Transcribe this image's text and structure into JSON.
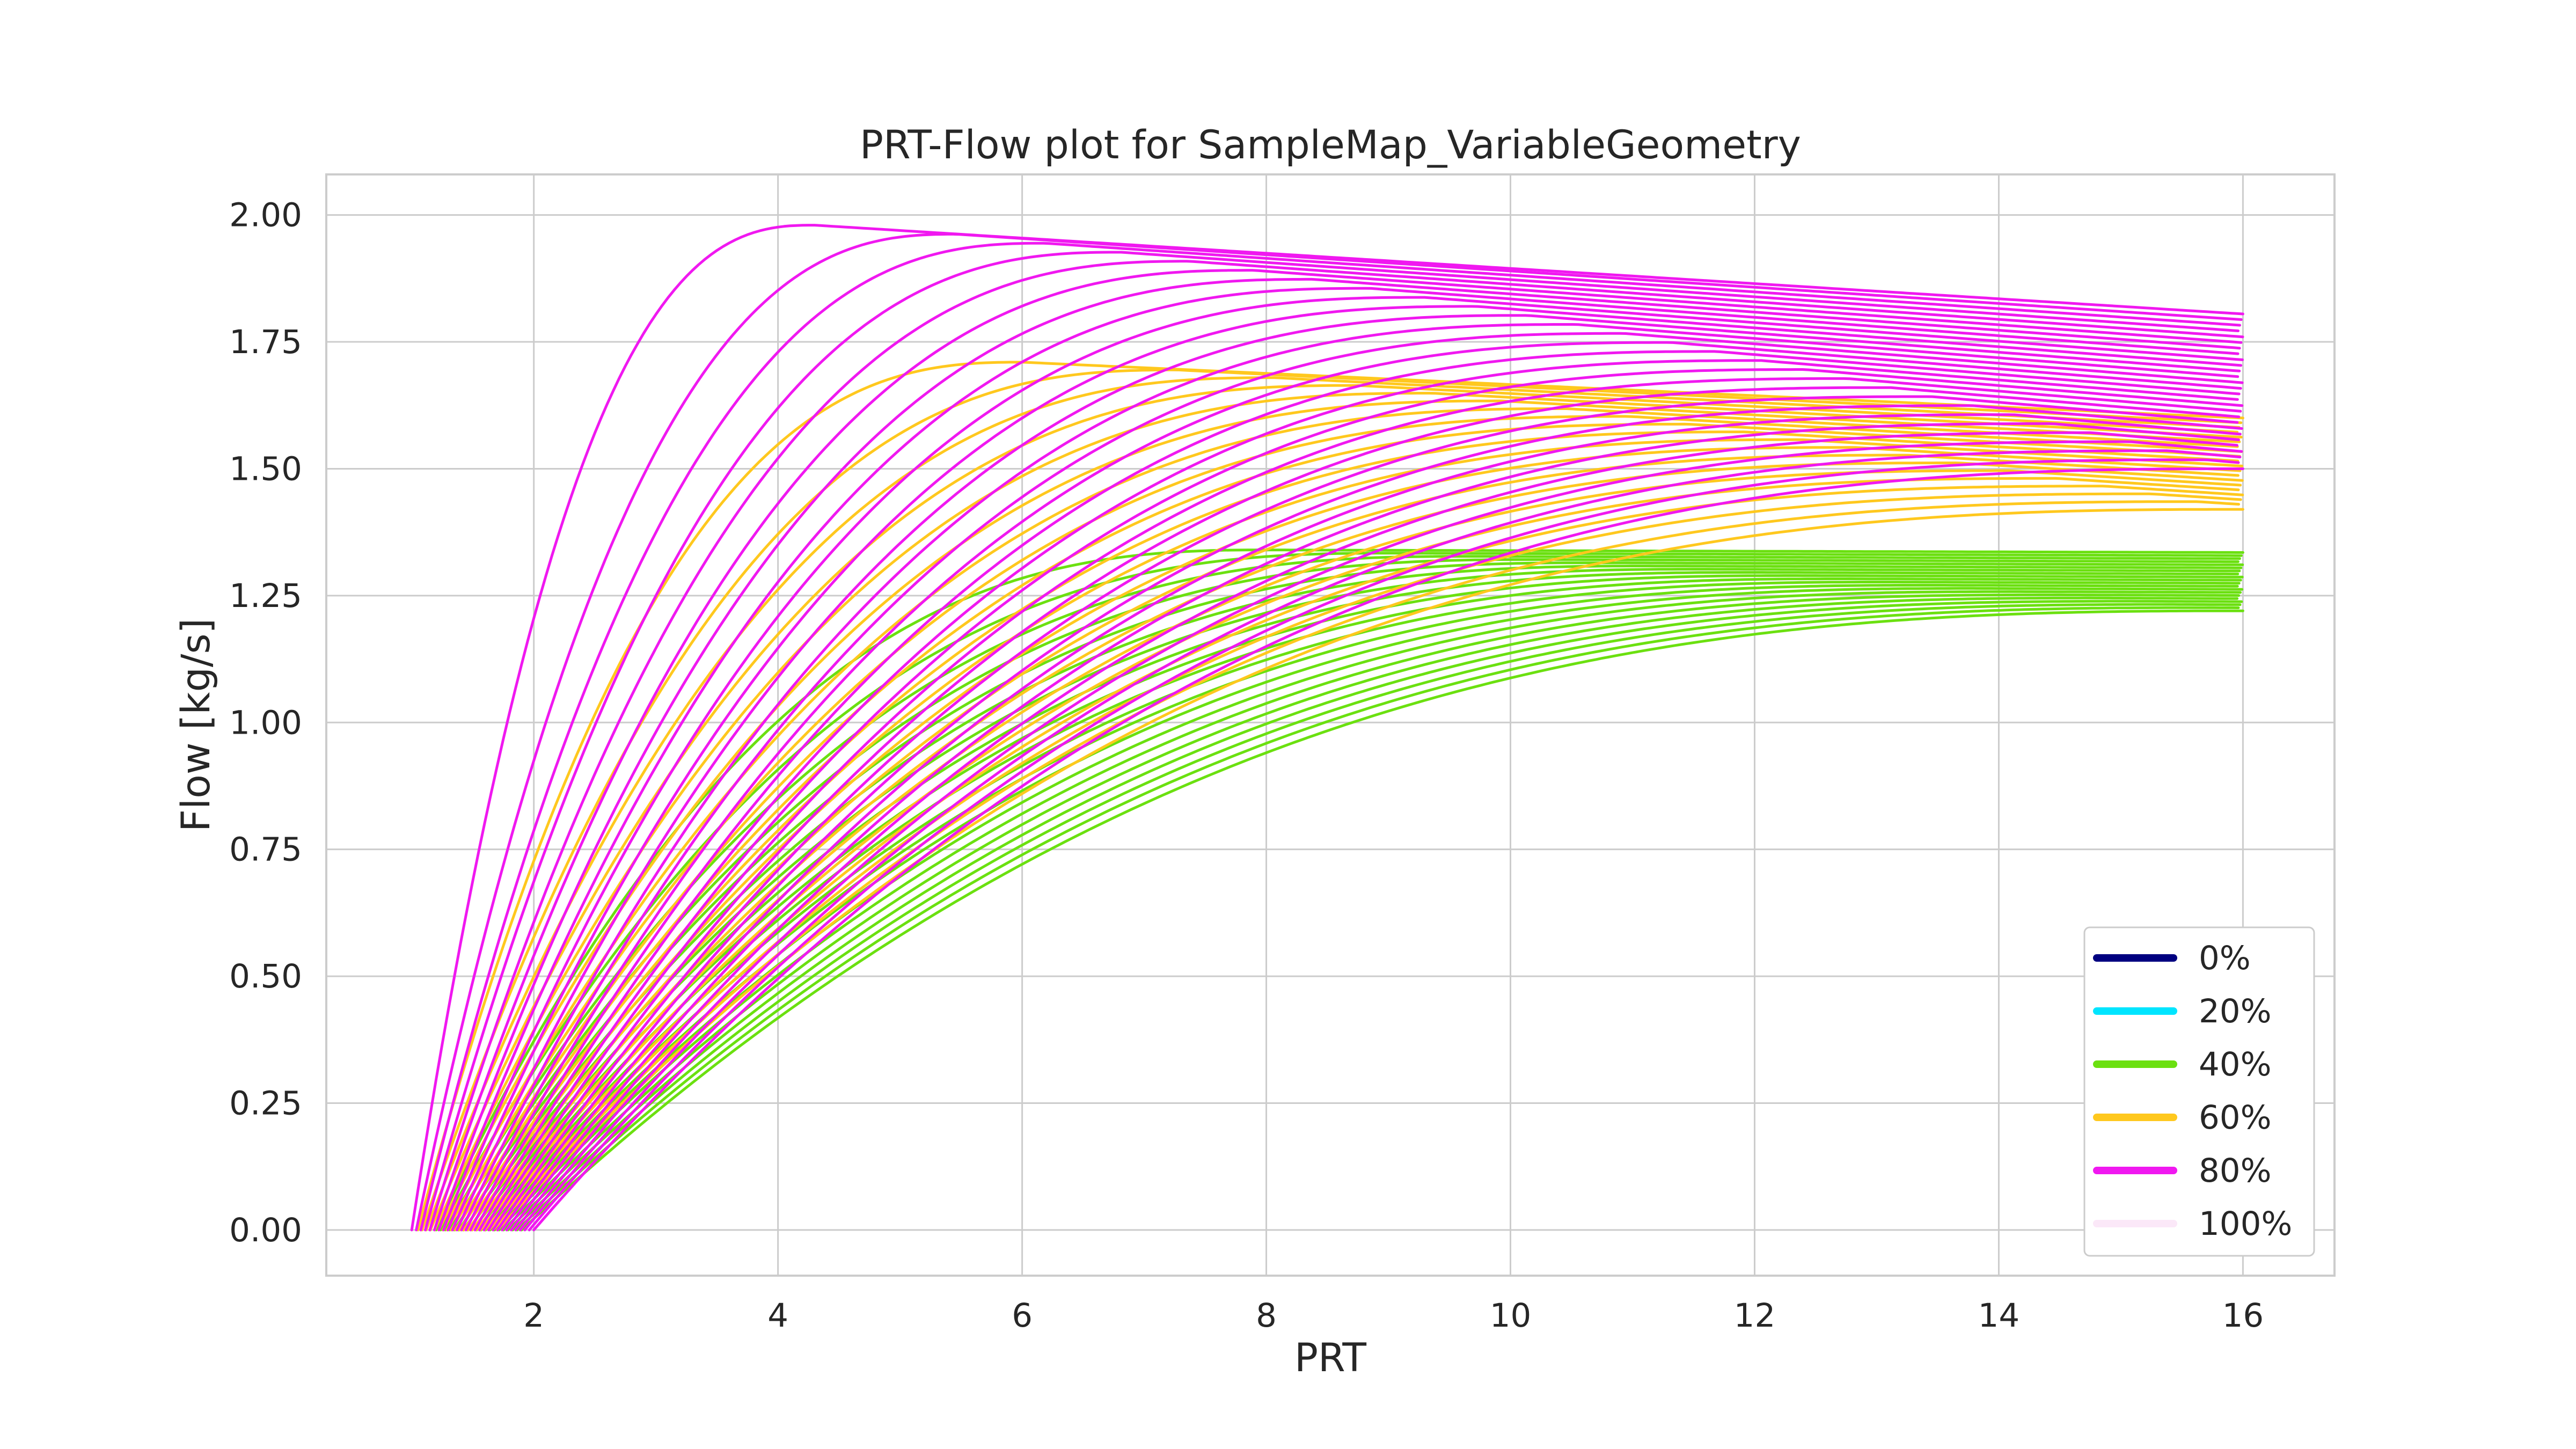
{
  "chart_data": {
    "type": "line",
    "title": "PRT-Flow plot for SampleMap_VariableGeometry",
    "xlabel": "PRT",
    "ylabel": "Flow [kg/s]",
    "xlim": [
      0.3,
      16.75
    ],
    "ylim": [
      -0.09,
      2.08
    ],
    "xticks": [
      2,
      4,
      6,
      8,
      10,
      12,
      14,
      16
    ],
    "yticks": [
      0.0,
      0.25,
      0.5,
      0.75,
      1.0,
      1.25,
      1.5,
      1.75,
      2.0
    ],
    "xtick_labels": [
      "2",
      "4",
      "6",
      "8",
      "10",
      "12",
      "14",
      "16"
    ],
    "ytick_labels": [
      "0.00",
      "0.25",
      "0.50",
      "0.75",
      "1.00",
      "1.25",
      "1.50",
      "1.75",
      "2.00"
    ],
    "grid": true,
    "legend_position": "bottom-right",
    "legend": [
      {
        "label": "0%",
        "color": "#000080"
      },
      {
        "label": "20%",
        "color": "#00e5ff"
      },
      {
        "label": "40%",
        "color": "#6be010"
      },
      {
        "label": "60%",
        "color": "#ffc81e"
      },
      {
        "label": "80%",
        "color": "#f018f0"
      },
      {
        "label": "100%",
        "color": "#fbe8f8"
      }
    ],
    "series": [
      {
        "group": "40%",
        "color": "#6be010",
        "curve_count": 20,
        "outer_curve": {
          "x_start": 1.2,
          "peak_x": 8.0,
          "peak_y": 1.34,
          "end_y_at_16": 1.335
        },
        "inner_curve": {
          "x_start": 1.9,
          "peak_x": 16.0,
          "peak_y": 1.22,
          "end_y_at_16": 1.22
        }
      },
      {
        "group": "60%",
        "color": "#ffc81e",
        "curve_count": 20,
        "outer_curve": {
          "x_start": 1.05,
          "peak_x": 6.0,
          "peak_y": 1.71,
          "end_y_at_16": 1.6
        },
        "inner_curve": {
          "x_start": 1.7,
          "peak_x": 16.0,
          "peak_y": 1.42,
          "end_y_at_16": 1.42
        }
      },
      {
        "group": "80%",
        "color": "#f018f0",
        "curve_count": 28,
        "outer_curve": {
          "x_start": 1.0,
          "peak_x": 4.3,
          "peak_y": 1.98,
          "end_y_at_16": 1.805
        },
        "inner_curve": {
          "x_start": 2.0,
          "peak_x": 16.0,
          "peak_y": 1.5,
          "end_y_at_16": 1.5
        }
      }
    ]
  }
}
